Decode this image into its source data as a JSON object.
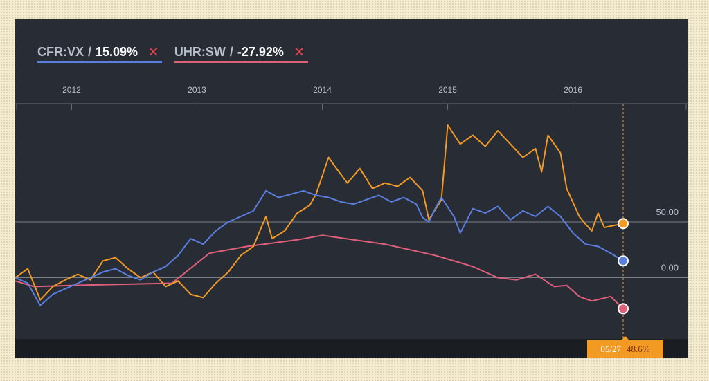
{
  "legend": [
    {
      "ticker": "CFR:VX",
      "separator": "/",
      "change": "15.09%",
      "color": "#5b7fe0",
      "close_icon": "close-icon"
    },
    {
      "ticker": "UHR:SW",
      "separator": "/",
      "change": "-27.92%",
      "color": "#e0607a",
      "close_icon": "close-icon"
    }
  ],
  "tooltip": {
    "date": "05/27",
    "value": "48.6%"
  },
  "chart_data": {
    "type": "line",
    "x_tick_labels": [
      "2012",
      "2013",
      "2014",
      "2015",
      "2016"
    ],
    "y_tick_labels": [
      "50.00",
      "0.00"
    ],
    "ylim": [
      -55,
      155
    ],
    "grid": "horizontal",
    "series": [
      {
        "color": "#f39a25",
        "end_value": 48.6,
        "points": [
          [
            2011.55,
            0
          ],
          [
            2011.65,
            8
          ],
          [
            2011.75,
            -20
          ],
          [
            2011.85,
            -8
          ],
          [
            2011.95,
            -2
          ],
          [
            2012.05,
            3
          ],
          [
            2012.15,
            -2
          ],
          [
            2012.25,
            15
          ],
          [
            2012.35,
            18
          ],
          [
            2012.45,
            8
          ],
          [
            2012.55,
            0
          ],
          [
            2012.65,
            5
          ],
          [
            2012.75,
            -8
          ],
          [
            2012.85,
            -3
          ],
          [
            2012.95,
            -15
          ],
          [
            2013.05,
            -18
          ],
          [
            2013.15,
            -5
          ],
          [
            2013.25,
            5
          ],
          [
            2013.35,
            20
          ],
          [
            2013.45,
            28
          ],
          [
            2013.55,
            55
          ],
          [
            2013.6,
            35
          ],
          [
            2013.7,
            42
          ],
          [
            2013.8,
            58
          ],
          [
            2013.9,
            65
          ],
          [
            2013.95,
            75
          ],
          [
            2014.05,
            108
          ],
          [
            2014.1,
            100
          ],
          [
            2014.2,
            85
          ],
          [
            2014.3,
            98
          ],
          [
            2014.4,
            80
          ],
          [
            2014.5,
            85
          ],
          [
            2014.6,
            82
          ],
          [
            2014.7,
            90
          ],
          [
            2014.8,
            78
          ],
          [
            2014.85,
            52
          ],
          [
            2014.95,
            70
          ],
          [
            2015.0,
            137
          ],
          [
            2015.1,
            120
          ],
          [
            2015.2,
            128
          ],
          [
            2015.3,
            118
          ],
          [
            2015.4,
            132
          ],
          [
            2015.5,
            120
          ],
          [
            2015.6,
            108
          ],
          [
            2015.7,
            116
          ],
          [
            2015.75,
            95
          ],
          [
            2015.8,
            128
          ],
          [
            2015.9,
            112
          ],
          [
            2015.95,
            80
          ],
          [
            2016.05,
            55
          ],
          [
            2016.1,
            48
          ],
          [
            2016.15,
            42
          ],
          [
            2016.2,
            58
          ],
          [
            2016.25,
            45
          ],
          [
            2016.4,
            48.6
          ]
        ]
      },
      {
        "color": "#5b7fe0",
        "end_value": 15.09,
        "points": [
          [
            2011.55,
            0
          ],
          [
            2011.65,
            -5
          ],
          [
            2011.75,
            -25
          ],
          [
            2011.85,
            -15
          ],
          [
            2011.95,
            -10
          ],
          [
            2012.05,
            -5
          ],
          [
            2012.15,
            0
          ],
          [
            2012.25,
            5
          ],
          [
            2012.35,
            8
          ],
          [
            2012.45,
            2
          ],
          [
            2012.55,
            -2
          ],
          [
            2012.65,
            5
          ],
          [
            2012.75,
            10
          ],
          [
            2012.85,
            20
          ],
          [
            2012.95,
            35
          ],
          [
            2013.05,
            30
          ],
          [
            2013.15,
            42
          ],
          [
            2013.25,
            50
          ],
          [
            2013.35,
            55
          ],
          [
            2013.45,
            60
          ],
          [
            2013.55,
            78
          ],
          [
            2013.65,
            72
          ],
          [
            2013.75,
            75
          ],
          [
            2013.85,
            78
          ],
          [
            2013.95,
            74
          ],
          [
            2014.05,
            72
          ],
          [
            2014.15,
            68
          ],
          [
            2014.25,
            66
          ],
          [
            2014.35,
            70
          ],
          [
            2014.45,
            74
          ],
          [
            2014.55,
            68
          ],
          [
            2014.65,
            72
          ],
          [
            2014.75,
            66
          ],
          [
            2014.8,
            54
          ],
          [
            2014.85,
            50
          ],
          [
            2014.9,
            62
          ],
          [
            2014.95,
            72
          ],
          [
            2015.05,
            55
          ],
          [
            2015.1,
            40
          ],
          [
            2015.2,
            62
          ],
          [
            2015.3,
            58
          ],
          [
            2015.4,
            64
          ],
          [
            2015.5,
            52
          ],
          [
            2015.6,
            60
          ],
          [
            2015.7,
            55
          ],
          [
            2015.8,
            64
          ],
          [
            2015.9,
            55
          ],
          [
            2016.0,
            40
          ],
          [
            2016.1,
            30
          ],
          [
            2016.2,
            28
          ],
          [
            2016.3,
            22
          ],
          [
            2016.4,
            15.09
          ]
        ]
      },
      {
        "color": "#e0607a",
        "end_value": -27.92,
        "points": [
          [
            2011.55,
            -3
          ],
          [
            2011.7,
            -8
          ],
          [
            2012.0,
            -7
          ],
          [
            2012.4,
            -6
          ],
          [
            2012.8,
            -5
          ],
          [
            2013.1,
            22
          ],
          [
            2013.4,
            28
          ],
          [
            2013.8,
            34
          ],
          [
            2014.0,
            38
          ],
          [
            2014.5,
            30
          ],
          [
            2014.9,
            20
          ],
          [
            2015.2,
            10
          ],
          [
            2015.4,
            0
          ],
          [
            2015.55,
            -2
          ],
          [
            2015.7,
            3
          ],
          [
            2015.85,
            -8
          ],
          [
            2015.95,
            -7
          ],
          [
            2016.05,
            -17
          ],
          [
            2016.15,
            -21
          ],
          [
            2016.3,
            -17
          ],
          [
            2016.4,
            -27.92
          ]
        ]
      }
    ]
  }
}
